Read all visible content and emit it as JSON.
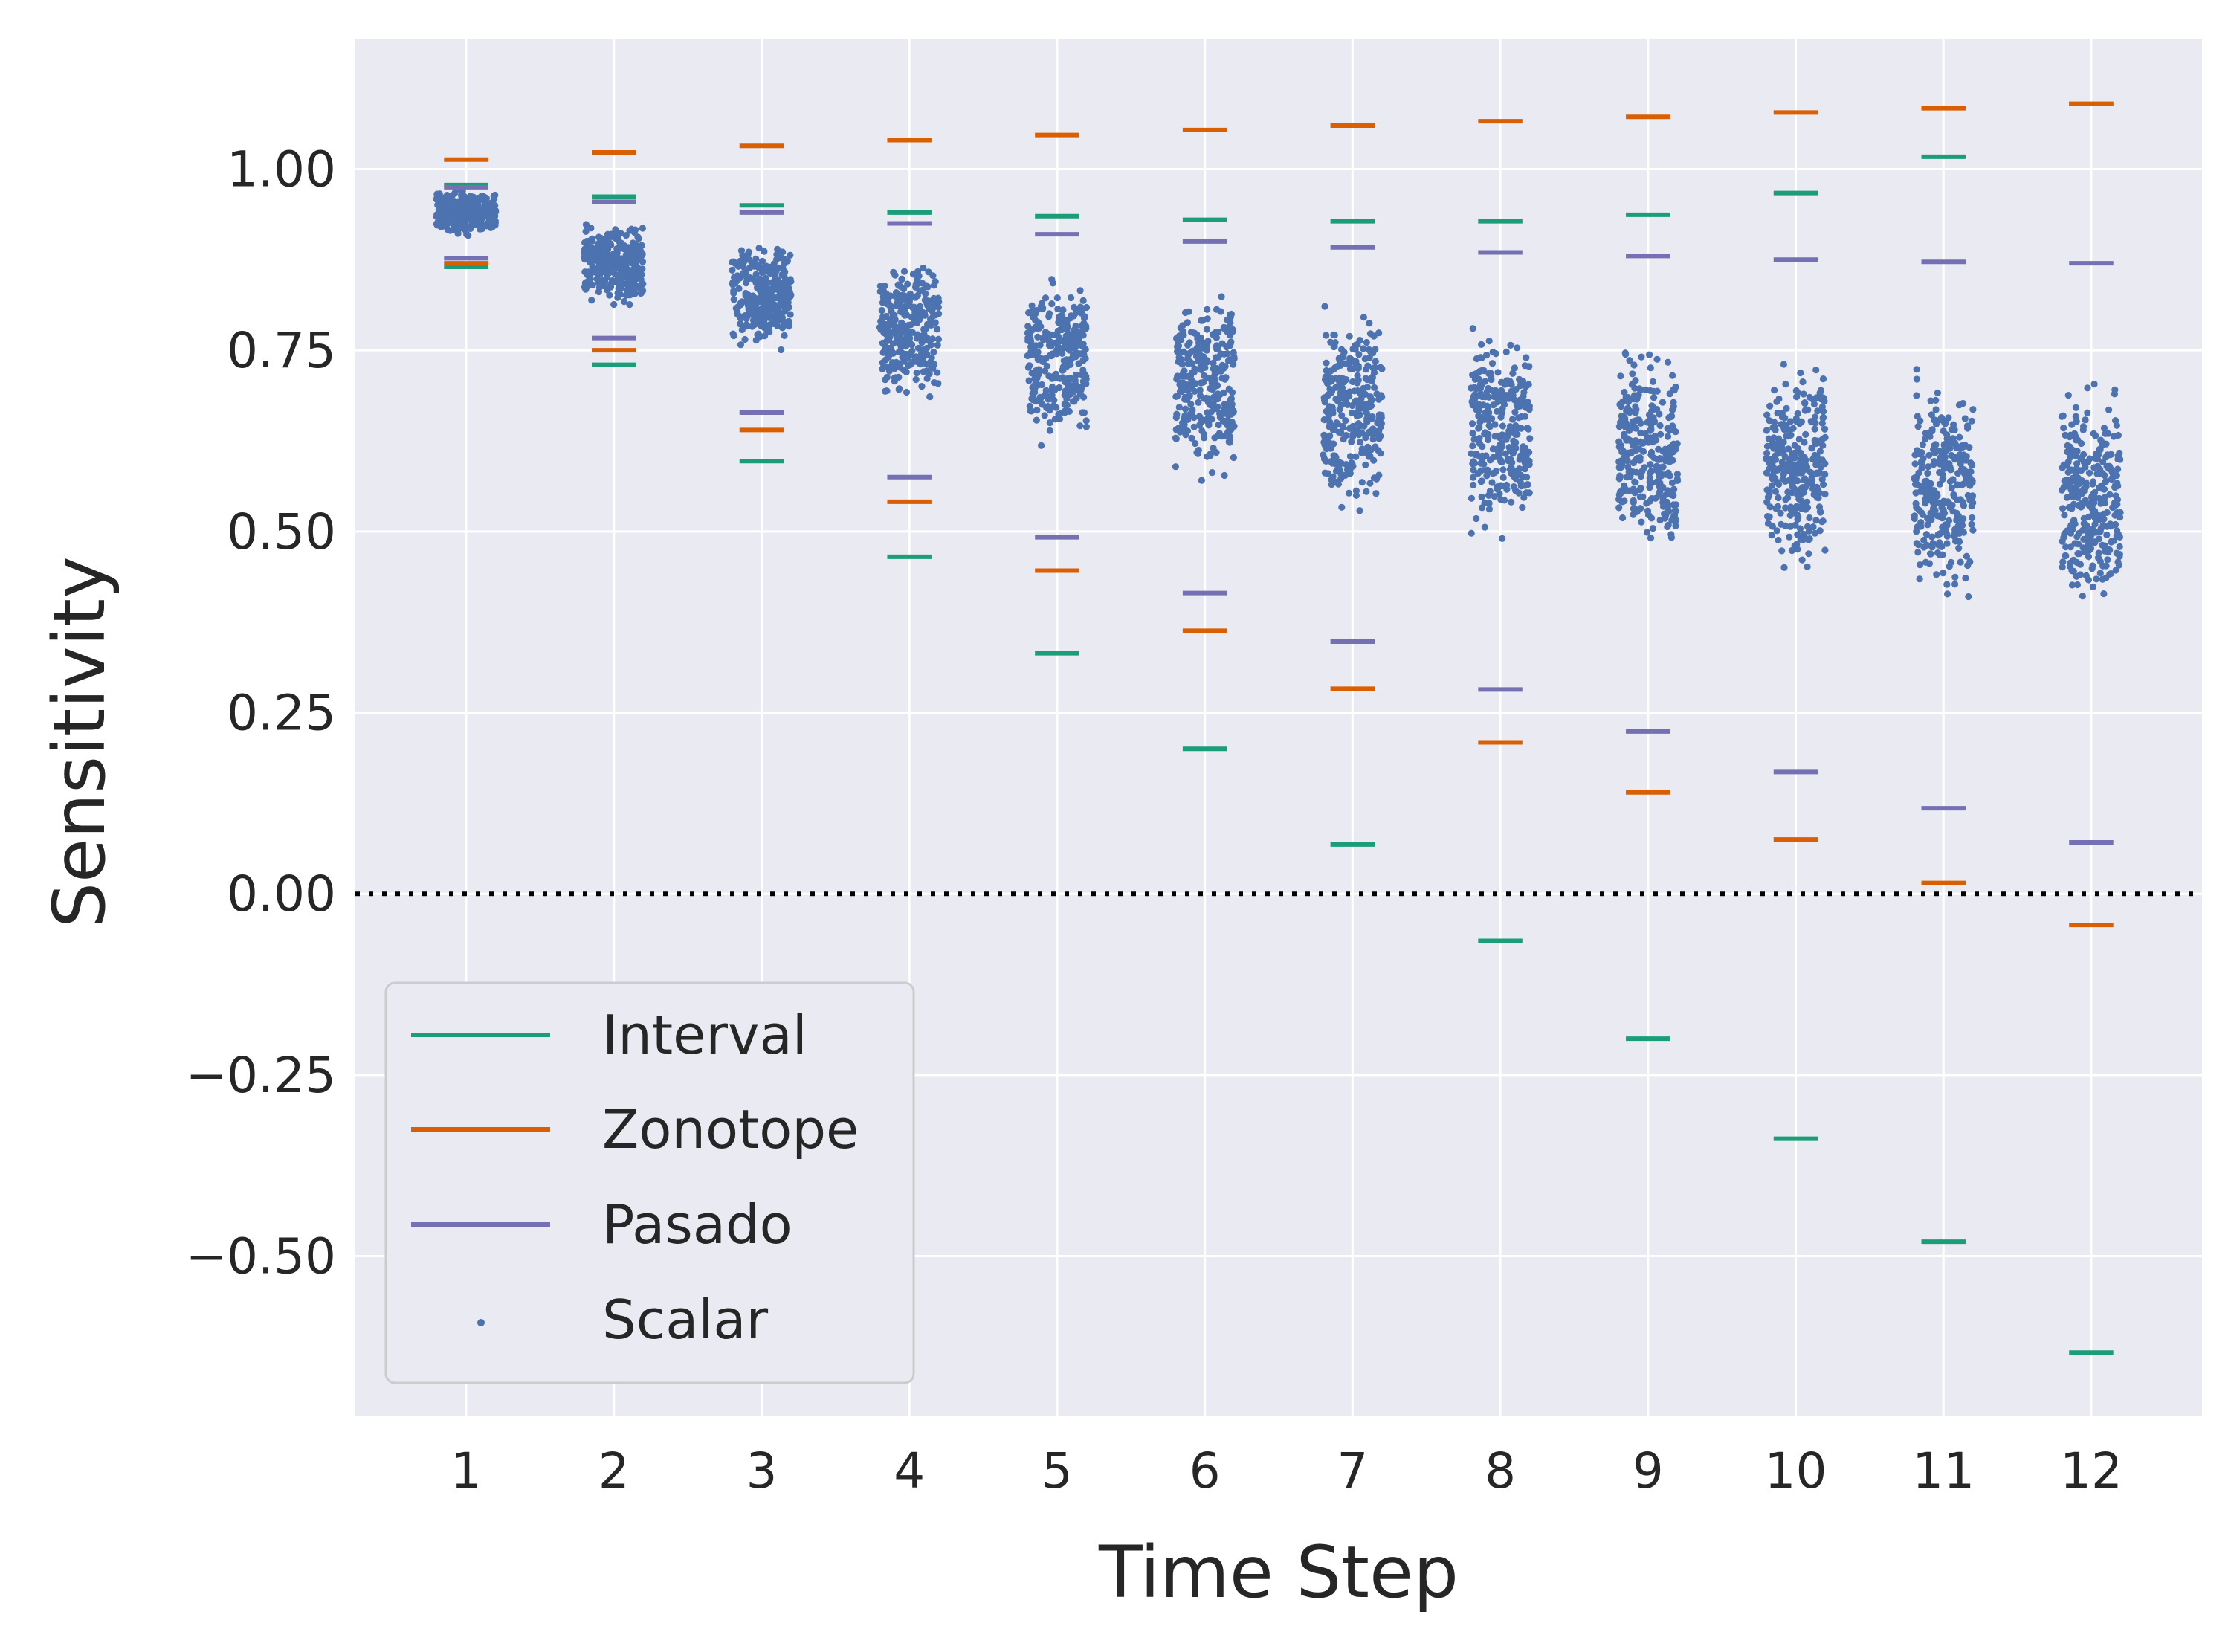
{
  "chart_data": {
    "type": "scatter",
    "title": "",
    "xlabel": "Time Step",
    "ylabel": "Sensitivity",
    "categories": [
      "1",
      "2",
      "3",
      "4",
      "5",
      "6",
      "7",
      "8",
      "9",
      "10",
      "11",
      "12"
    ],
    "ylim": [
      -0.72,
      1.18
    ],
    "xlim": [
      0.25,
      12.75
    ],
    "yticks": [
      {
        "value": 1.0,
        "label": "1.00"
      },
      {
        "value": 0.75,
        "label": "0.75"
      },
      {
        "value": 0.5,
        "label": "0.50"
      },
      {
        "value": 0.25,
        "label": "0.25"
      },
      {
        "value": 0.0,
        "label": "0.00"
      },
      {
        "value": -0.25,
        "label": "−0.25"
      },
      {
        "value": -0.5,
        "label": "−0.50"
      }
    ],
    "grid": true,
    "reference_line": {
      "y": 0.0,
      "style": "dotted",
      "color": "#000000"
    },
    "legend_position": "lower-left",
    "series": [
      {
        "name": "Interval",
        "kind": "hline",
        "color": "#1b9e77",
        "lower": [
          0.865,
          0.73,
          0.597,
          0.465,
          0.332,
          0.2,
          0.068,
          -0.065,
          -0.2,
          -0.338,
          -0.48,
          -0.633
        ],
        "upper": [
          0.978,
          0.962,
          0.95,
          0.94,
          0.935,
          0.93,
          0.928,
          0.928,
          0.937,
          0.967,
          1.017,
          1.09
        ]
      },
      {
        "name": "Zonotope",
        "kind": "hline",
        "color": "#d95f02",
        "lower": [
          0.87,
          0.75,
          0.64,
          0.541,
          0.446,
          0.363,
          0.283,
          0.209,
          0.14,
          0.075,
          0.015,
          -0.043
        ],
        "upper": [
          1.013,
          1.023,
          1.032,
          1.04,
          1.047,
          1.054,
          1.06,
          1.066,
          1.072,
          1.078,
          1.084,
          1.09
        ]
      },
      {
        "name": "Pasado",
        "kind": "hline",
        "color": "#7570b3",
        "lower": [
          0.877,
          0.767,
          0.664,
          0.575,
          0.492,
          0.415,
          0.348,
          0.282,
          0.224,
          0.168,
          0.118,
          0.071
        ],
        "upper": [
          0.975,
          0.955,
          0.94,
          0.925,
          0.91,
          0.9,
          0.892,
          0.885,
          0.88,
          0.875,
          0.872,
          0.87
        ]
      },
      {
        "name": "Scalar",
        "kind": "scatter",
        "color": "#4c72b0",
        "points_per_step": 300,
        "range_min": [
          0.9,
          0.8,
          0.74,
          0.66,
          0.6,
          0.55,
          0.5,
          0.47,
          0.44,
          0.41,
          0.38,
          0.36
        ],
        "range_max": [
          0.98,
          0.94,
          0.915,
          0.9,
          0.88,
          0.855,
          0.84,
          0.81,
          0.79,
          0.77,
          0.75,
          0.73
        ]
      }
    ]
  }
}
